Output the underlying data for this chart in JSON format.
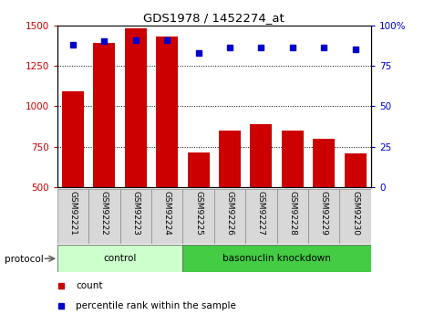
{
  "title": "GDS1978 / 1452274_at",
  "samples": [
    "GSM92221",
    "GSM92222",
    "GSM92223",
    "GSM92224",
    "GSM92225",
    "GSM92226",
    "GSM92227",
    "GSM92228",
    "GSM92229",
    "GSM92230"
  ],
  "counts": [
    1090,
    1390,
    1480,
    1430,
    715,
    850,
    890,
    850,
    800,
    710
  ],
  "percentile_ranks": [
    88,
    90,
    91,
    91,
    83,
    86,
    86,
    86,
    86,
    85
  ],
  "n_control": 4,
  "n_knockdown": 6,
  "ylim_left": [
    500,
    1500
  ],
  "ylim_right": [
    0,
    100
  ],
  "yticks_left": [
    500,
    750,
    1000,
    1250,
    1500
  ],
  "yticks_right": [
    0,
    25,
    50,
    75,
    100
  ],
  "bar_color": "#cc0000",
  "dot_color": "#0000cc",
  "control_bg": "#ccffcc",
  "knockdown_bg": "#44cc44",
  "label_bg": "#d8d8d8",
  "protocol_label": "protocol",
  "control_label": "control",
  "knockdown_label": "basonuclin knockdown",
  "legend_count": "count",
  "legend_pct": "percentile rank within the sample"
}
